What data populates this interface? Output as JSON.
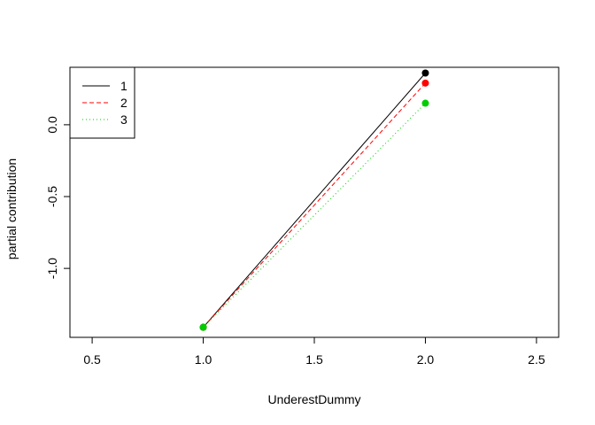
{
  "chart_data": {
    "type": "line",
    "title": "",
    "xlabel": "UnderestDummy",
    "ylabel": "partial contribution",
    "xlim": [
      0.4,
      2.6
    ],
    "ylim": [
      -1.48,
      0.4
    ],
    "x_ticks": [
      0.5,
      1.0,
      1.5,
      2.0,
      2.5
    ],
    "x_tick_labels": [
      "0.5",
      "1.0",
      "1.5",
      "2.0",
      "2.5"
    ],
    "y_ticks": [
      -1.0,
      -0.5,
      0.0
    ],
    "y_tick_labels": [
      "-1.0",
      "-0.5",
      "0.0"
    ],
    "grid": false,
    "legend_position": "top-left",
    "series": [
      {
        "name": "1",
        "x": [
          1.0,
          2.0
        ],
        "y": [
          -1.41,
          0.36
        ],
        "color": "#000000",
        "dash": "solid"
      },
      {
        "name": "2",
        "x": [
          1.0,
          2.0
        ],
        "y": [
          -1.41,
          0.29
        ],
        "color": "#ff0000",
        "dash": "dashed"
      },
      {
        "name": "3",
        "x": [
          1.0,
          2.0
        ],
        "y": [
          -1.41,
          0.15
        ],
        "color": "#00cd00",
        "dash": "dotted"
      }
    ]
  }
}
